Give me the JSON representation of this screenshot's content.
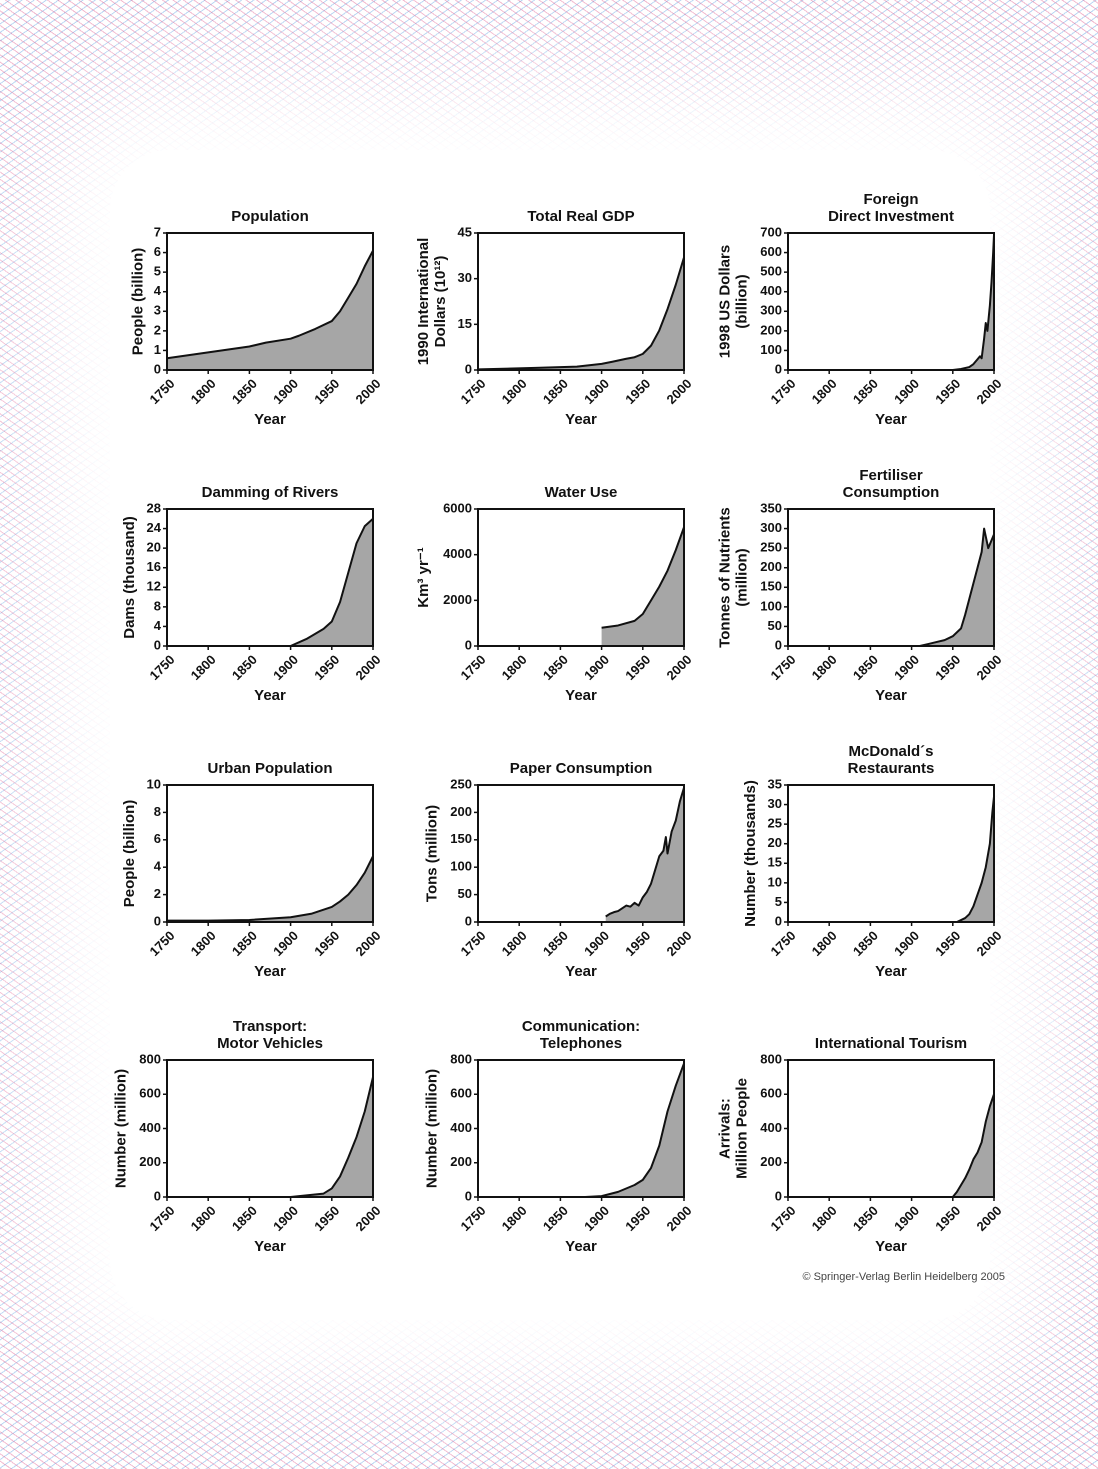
{
  "chart_data": [
    {
      "type": "area",
      "title": [
        "Population"
      ],
      "xlabel": "Year",
      "ylabel": [
        "People (billion)"
      ],
      "color": "#a6a6a6",
      "x": [
        1750,
        1800,
        1850,
        1870,
        1900,
        1910,
        1930,
        1950,
        1960,
        1970,
        1980,
        1990,
        2000
      ],
      "values": [
        0.6,
        0.9,
        1.2,
        1.4,
        1.6,
        1.75,
        2.1,
        2.5,
        3.0,
        3.7,
        4.4,
        5.3,
        6.1
      ],
      "xlim": [
        1750,
        2000
      ],
      "xticks": [
        1750,
        1800,
        1850,
        1900,
        1950,
        2000
      ],
      "ylim": [
        0,
        7
      ],
      "yticks": [
        0,
        1,
        2,
        3,
        4,
        5,
        6,
        7
      ]
    },
    {
      "type": "area",
      "title": [
        "Total Real GDP"
      ],
      "xlabel": "Year",
      "ylabel": [
        "1990 International",
        "Dollars (10¹²)"
      ],
      "color": "#a6a6a6",
      "x": [
        1750,
        1820,
        1870,
        1900,
        1913,
        1930,
        1940,
        1950,
        1960,
        1970,
        1980,
        1990,
        2000
      ],
      "values": [
        0.2,
        0.7,
        1.1,
        2.0,
        2.7,
        3.7,
        4.2,
        5.3,
        8.0,
        13,
        20,
        28,
        37
      ],
      "xlim": [
        1750,
        2000
      ],
      "xticks": [
        1750,
        1800,
        1850,
        1900,
        1950,
        2000
      ],
      "ylim": [
        0,
        45
      ],
      "yticks": [
        0,
        15,
        30,
        45
      ]
    },
    {
      "type": "area",
      "title": [
        "Foreign",
        "Direct Investment"
      ],
      "xlabel": "Year",
      "ylabel": [
        "1998 US Dollars",
        "(billion)"
      ],
      "color": "#a6a6a6",
      "x": [
        1950,
        1960,
        1970,
        1975,
        1980,
        1983,
        1985,
        1988,
        1990,
        1992,
        1995,
        1997,
        1999,
        2000
      ],
      "values": [
        0,
        5,
        15,
        30,
        55,
        70,
        60,
        160,
        240,
        200,
        330,
        450,
        600,
        690
      ],
      "xlim": [
        1750,
        2000
      ],
      "xticks": [
        1750,
        1800,
        1850,
        1900,
        1950,
        2000
      ],
      "ylim": [
        0,
        700
      ],
      "yticks": [
        0,
        100,
        200,
        300,
        400,
        500,
        600,
        700
      ]
    },
    {
      "type": "area",
      "title": [
        "Damming of Rivers"
      ],
      "xlabel": "Year",
      "ylabel": [
        "Dams (thousand)"
      ],
      "color": "#a6a6a6",
      "x": [
        1900,
        1920,
        1940,
        1950,
        1960,
        1970,
        1980,
        1990,
        2000
      ],
      "values": [
        0,
        1.5,
        3.5,
        5,
        9,
        15,
        21,
        24.5,
        26
      ],
      "xlim": [
        1750,
        2000
      ],
      "xticks": [
        1750,
        1800,
        1850,
        1900,
        1950,
        2000
      ],
      "ylim": [
        0,
        28
      ],
      "yticks": [
        0,
        4,
        8,
        12,
        16,
        20,
        24,
        28
      ]
    },
    {
      "type": "area",
      "title": [
        "Water Use"
      ],
      "xlabel": "Year",
      "ylabel": [
        "Km³ yr⁻¹"
      ],
      "color": "#a6a6a6",
      "x": [
        1900,
        1920,
        1940,
        1950,
        1960,
        1970,
        1980,
        1990,
        2000
      ],
      "values": [
        800,
        900,
        1100,
        1400,
        2000,
        2600,
        3300,
        4200,
        5200
      ],
      "xlim": [
        1750,
        2000
      ],
      "xticks": [
        1750,
        1800,
        1850,
        1900,
        1950,
        2000
      ],
      "ylim": [
        0,
        6000
      ],
      "yticks": [
        0,
        2000,
        4000,
        6000
      ]
    },
    {
      "type": "area",
      "title": [
        "Fertiliser",
        "Consumption"
      ],
      "xlabel": "Year",
      "ylabel": [
        "Tonnes of Nutrients",
        "(million)"
      ],
      "color": "#a6a6a6",
      "x": [
        1910,
        1920,
        1930,
        1940,
        1950,
        1960,
        1965,
        1970,
        1975,
        1980,
        1985,
        1988,
        1990,
        1993,
        1995,
        2000
      ],
      "values": [
        0,
        5,
        10,
        15,
        25,
        45,
        80,
        120,
        160,
        200,
        240,
        300,
        280,
        250,
        260,
        285
      ],
      "xlim": [
        1750,
        2000
      ],
      "xticks": [
        1750,
        1800,
        1850,
        1900,
        1950,
        2000
      ],
      "ylim": [
        0,
        350
      ],
      "yticks": [
        0,
        50,
        100,
        150,
        200,
        250,
        300,
        350
      ]
    },
    {
      "type": "area",
      "title": [
        "Urban Population"
      ],
      "xlabel": "Year",
      "ylabel": [
        "People (billion)"
      ],
      "color": "#a6a6a6",
      "x": [
        1750,
        1800,
        1850,
        1900,
        1925,
        1950,
        1960,
        1970,
        1980,
        1990,
        2000
      ],
      "values": [
        0.1,
        0.1,
        0.15,
        0.35,
        0.6,
        1.1,
        1.5,
        2.0,
        2.7,
        3.6,
        4.8
      ],
      "xlim": [
        1750,
        2000
      ],
      "xticks": [
        1750,
        1800,
        1850,
        1900,
        1950,
        2000
      ],
      "ylim": [
        0,
        10
      ],
      "yticks": [
        0,
        2,
        4,
        6,
        8,
        10
      ]
    },
    {
      "type": "area",
      "title": [
        "Paper Consumption"
      ],
      "xlabel": "Year",
      "ylabel": [
        "Tons (million)"
      ],
      "color": "#a6a6a6",
      "x": [
        1905,
        1910,
        1915,
        1920,
        1925,
        1930,
        1935,
        1940,
        1945,
        1950,
        1955,
        1960,
        1965,
        1970,
        1975,
        1978,
        1980,
        1985,
        1990,
        1995,
        2000
      ],
      "values": [
        10,
        15,
        18,
        20,
        25,
        30,
        28,
        35,
        30,
        45,
        55,
        70,
        95,
        120,
        130,
        155,
        125,
        165,
        185,
        220,
        245
      ],
      "xlim": [
        1750,
        2000
      ],
      "xticks": [
        1750,
        1800,
        1850,
        1900,
        1950,
        2000
      ],
      "ylim": [
        0,
        250
      ],
      "yticks": [
        0,
        50,
        100,
        150,
        200,
        250
      ]
    },
    {
      "type": "area",
      "title": [
        "McDonald´s",
        "Restaurants"
      ],
      "xlabel": "Year",
      "ylabel": [
        "Number (thousands)"
      ],
      "color": "#a6a6a6",
      "x": [
        1955,
        1960,
        1965,
        1970,
        1975,
        1980,
        1985,
        1990,
        1995,
        1998,
        2000
      ],
      "values": [
        0,
        0.5,
        1,
        2,
        4,
        7,
        10,
        14,
        20,
        28,
        32
      ],
      "xlim": [
        1750,
        2000
      ],
      "xticks": [
        1750,
        1800,
        1850,
        1900,
        1950,
        2000
      ],
      "ylim": [
        0,
        35
      ],
      "yticks": [
        0,
        5,
        10,
        15,
        20,
        25,
        30,
        35
      ]
    },
    {
      "type": "area",
      "title": [
        "Transport:",
        "Motor Vehicles"
      ],
      "xlabel": "Year",
      "ylabel": [
        "Number (million)"
      ],
      "color": "#a6a6a6",
      "x": [
        1900,
        1940,
        1950,
        1960,
        1970,
        1980,
        1990,
        2000
      ],
      "values": [
        0,
        20,
        50,
        120,
        230,
        350,
        500,
        700
      ],
      "xlim": [
        1750,
        2000
      ],
      "xticks": [
        1750,
        1800,
        1850,
        1900,
        1950,
        2000
      ],
      "ylim": [
        0,
        800
      ],
      "yticks": [
        0,
        200,
        400,
        600,
        800
      ]
    },
    {
      "type": "area",
      "title": [
        "Communication:",
        "Telephones"
      ],
      "xlabel": "Year",
      "ylabel": [
        "Number (million)"
      ],
      "color": "#a6a6a6",
      "x": [
        1880,
        1900,
        1920,
        1940,
        1950,
        1960,
        1970,
        1980,
        1990,
        2000
      ],
      "values": [
        0,
        5,
        30,
        70,
        100,
        170,
        300,
        500,
        650,
        780
      ],
      "xlim": [
        1750,
        2000
      ],
      "xticks": [
        1750,
        1800,
        1850,
        1900,
        1950,
        2000
      ],
      "ylim": [
        0,
        800
      ],
      "yticks": [
        0,
        200,
        400,
        600,
        800
      ]
    },
    {
      "type": "area",
      "title": [
        "International Tourism"
      ],
      "xlabel": "Year",
      "ylabel": [
        "Arrivals:",
        "Million People"
      ],
      "color": "#a6a6a6",
      "x": [
        1950,
        1955,
        1960,
        1965,
        1970,
        1975,
        1980,
        1985,
        1990,
        1995,
        2000
      ],
      "values": [
        0,
        30,
        70,
        110,
        160,
        220,
        260,
        320,
        440,
        530,
        600
      ],
      "xlim": [
        1750,
        2000
      ],
      "xticks": [
        1750,
        1800,
        1850,
        1900,
        1950,
        2000
      ],
      "ylim": [
        0,
        800
      ],
      "yticks": [
        0,
        200,
        400,
        600,
        800
      ]
    }
  ],
  "credit": "© Springer-Verlag Berlin Heidelberg 2005"
}
